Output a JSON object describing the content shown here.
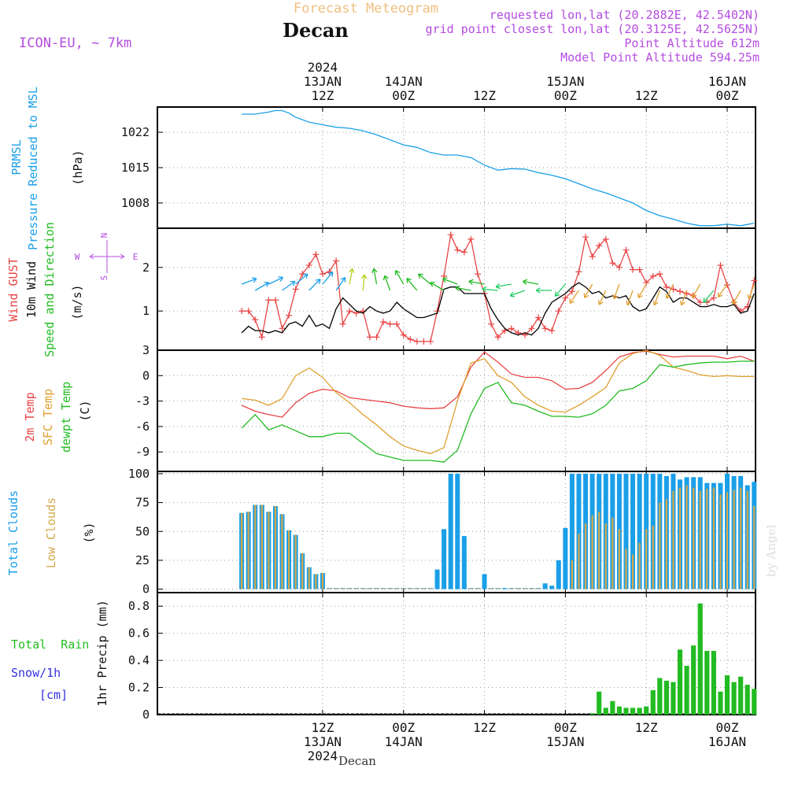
{
  "header": {
    "subtitle": "Forecast Meteogram",
    "title": "Decan",
    "model": "ICON-EU, ~ 7km",
    "requested": "requested lon,lat (20.2882E, 42.5402N)",
    "grid": "grid point closest lon,lat (20.3125E, 42.5625N)",
    "point_alt": "Point Altitude 612m",
    "model_alt": "Model Point Altitude 594.25m",
    "watermark": "by Angel",
    "footer_place": "Decan"
  },
  "colors": {
    "pressure": "#1a9fe8",
    "gust": "#e84545",
    "wind": "#000000",
    "dir": "#22bb22",
    "temp2m": "#e84545",
    "sfc": "#e0a030",
    "dewpt": "#22bb22",
    "total_clouds": "#1a9fe8",
    "low_clouds": "#d4a84b",
    "rain": "#22bb22",
    "snow": "#3333dd",
    "label_purple": "#b44ce0",
    "title_orange": "#f0c080"
  },
  "time_axis": {
    "top_labels": [
      {
        "lines": [
          "2024",
          "13JAN",
          "12Z"
        ],
        "hour": 12
      },
      {
        "lines": [
          "14JAN",
          "00Z"
        ],
        "hour": 24
      },
      {
        "lines": [
          "12Z"
        ],
        "hour": 36
      },
      {
        "lines": [
          "15JAN",
          "00Z"
        ],
        "hour": 48
      },
      {
        "lines": [
          "12Z"
        ],
        "hour": 60
      },
      {
        "lines": [
          "16JAN",
          "00Z"
        ],
        "hour": 72
      }
    ],
    "bottom_labels": [
      {
        "lines": [
          "12Z",
          "13JAN",
          "2024"
        ],
        "hour": 12
      },
      {
        "lines": [
          "00Z",
          "14JAN"
        ],
        "hour": 24
      },
      {
        "lines": [
          "12Z"
        ],
        "hour": 36
      },
      {
        "lines": [
          "00Z",
          "15JAN"
        ],
        "hour": 48
      },
      {
        "lines": [
          "12Z"
        ],
        "hour": 60
      },
      {
        "lines": [
          "00Z",
          "16JAN"
        ],
        "hour": 72
      }
    ]
  },
  "panel_labels": {
    "pressure": [
      "PRMSL",
      "Pressure Reduced to MSL"
    ],
    "pressure_unit": "(hPa)",
    "wind_gust": "Wind GUST",
    "wind_10m": "10m Wind",
    "wind_dir": "Speed and Direction",
    "wind_unit": "(m/s)",
    "compass_n": "N",
    "compass_s": "S",
    "compass_w": "W",
    "compass_e": "E",
    "temp2m": "2m Temp",
    "sfc": "SFC Temp",
    "dewpt": "dewpt Temp",
    "temp_unit": "(C)",
    "total_clouds": "Total Clouds",
    "low_clouds": "Low Clouds",
    "cloud_unit": "(%)",
    "total_rain": "Total  Rain",
    "snow": "Snow/1h",
    "snow_unit": "[cm]",
    "precip_unit": "1hr Precip (mm)"
  },
  "chart_data": [
    {
      "type": "line",
      "title": "PRMSL Pressure Reduced to MSL",
      "ylabel": "(hPa)",
      "y_ticks": [
        1008,
        1015,
        1022
      ],
      "ylim": [
        1003,
        1027
      ],
      "x_hours": [
        0,
        2,
        4,
        5,
        6,
        7,
        8,
        10,
        12,
        14,
        16,
        18,
        20,
        22,
        24,
        26,
        28,
        30,
        32,
        34,
        36,
        38,
        40,
        42,
        44,
        46,
        48,
        50,
        52,
        54,
        56,
        58,
        60,
        62,
        64,
        66,
        68,
        70,
        72,
        74,
        76
      ],
      "series": [
        {
          "name": "PRMSL",
          "values": [
            1025.6,
            1025.6,
            1026.0,
            1026.3,
            1026.3,
            1025.8,
            1025.0,
            1024.0,
            1023.5,
            1023.0,
            1022.8,
            1022.3,
            1021.5,
            1020.5,
            1019.5,
            1019.0,
            1018.0,
            1017.5,
            1017.5,
            1017.0,
            1015.5,
            1014.5,
            1014.8,
            1014.7,
            1014.0,
            1013.5,
            1012.8,
            1011.8,
            1010.8,
            1010.0,
            1009.0,
            1008.0,
            1006.5,
            1005.5,
            1004.8,
            1004.0,
            1003.5,
            1003.5,
            1003.8,
            1003.5,
            1004.0
          ]
        }
      ]
    },
    {
      "type": "line",
      "title": "Wind GUST / 10m Wind Speed and Direction",
      "ylabel": "(m/s)",
      "y_ticks": [
        1,
        2
      ],
      "ylim": [
        0.1,
        2.9
      ],
      "x_hours": [
        0,
        1,
        2,
        3,
        4,
        5,
        6,
        7,
        8,
        9,
        10,
        11,
        12,
        13,
        14,
        15,
        16,
        17,
        18,
        19,
        20,
        21,
        22,
        23,
        24,
        25,
        26,
        27,
        28,
        29,
        30,
        31,
        32,
        33,
        34,
        35,
        36,
        37,
        38,
        39,
        40,
        41,
        42,
        43,
        44,
        45,
        46,
        47,
        48,
        49,
        50,
        51,
        52,
        53,
        54,
        55,
        56,
        57,
        58,
        59,
        60,
        61,
        62,
        63,
        64,
        65,
        66,
        67,
        68,
        69,
        70,
        71,
        72,
        73,
        74,
        75,
        76
      ],
      "series": [
        {
          "name": "Wind GUST",
          "values": [
            1.0,
            1.0,
            0.8,
            0.4,
            1.25,
            1.25,
            0.6,
            0.9,
            1.5,
            1.85,
            2.05,
            2.3,
            1.85,
            1.9,
            2.15,
            0.7,
            1.0,
            0.95,
            1.0,
            0.4,
            0.4,
            0.75,
            0.7,
            0.7,
            0.45,
            0.35,
            0.3,
            0.3,
            0.3,
            1.0,
            1.8,
            2.75,
            2.4,
            2.35,
            2.65,
            1.85,
            1.4,
            0.7,
            0.4,
            0.55,
            0.6,
            0.5,
            0.45,
            0.6,
            0.85,
            0.6,
            0.55,
            1.0,
            1.3,
            1.45,
            1.9,
            2.7,
            2.25,
            2.5,
            2.65,
            2.1,
            2.0,
            2.4,
            1.95,
            1.95,
            1.65,
            1.8,
            1.85,
            1.55,
            1.5,
            1.45,
            1.4,
            1.35,
            1.2,
            1.2,
            1.3,
            2.05,
            1.6,
            1.2,
            1.0,
            1.1,
            1.7
          ]
        },
        {
          "name": "10m Wind",
          "values": [
            0.5,
            0.65,
            0.55,
            0.55,
            0.5,
            0.55,
            0.5,
            0.7,
            0.75,
            0.65,
            0.9,
            0.65,
            0.7,
            0.6,
            1.05,
            1.3,
            1.15,
            1.0,
            0.95,
            1.1,
            1.0,
            0.95,
            1.0,
            1.2,
            1.05,
            0.95,
            0.85,
            0.85,
            0.9,
            0.95,
            1.5,
            1.55,
            1.55,
            1.4,
            1.4,
            1.4,
            1.4,
            1.05,
            0.8,
            0.6,
            0.5,
            0.45,
            0.5,
            0.45,
            0.6,
            0.95,
            1.2,
            1.3,
            1.4,
            1.55,
            1.65,
            1.55,
            1.4,
            1.45,
            1.3,
            1.35,
            1.3,
            1.35,
            1.1,
            1.0,
            1.05,
            1.3,
            1.55,
            1.45,
            1.2,
            1.3,
            1.3,
            1.2,
            1.1,
            1.1,
            1.15,
            1.1,
            1.1,
            1.15,
            0.95,
            1.0,
            1.4
          ]
        }
      ],
      "direction_arrows_hours": [
        0,
        2,
        4,
        6,
        8,
        10,
        12,
        14,
        16,
        18,
        20,
        22,
        24,
        26,
        28,
        30,
        32,
        34,
        36,
        38,
        40,
        42,
        44,
        46,
        48,
        50,
        52,
        54,
        56,
        58,
        60,
        62,
        64,
        66,
        68,
        70,
        72,
        74,
        76
      ],
      "direction_arrows_deg": [
        70,
        60,
        65,
        55,
        50,
        45,
        40,
        35,
        10,
        5,
        350,
        340,
        330,
        320,
        310,
        300,
        290,
        280,
        280,
        275,
        260,
        250,
        280,
        270,
        220,
        215,
        210,
        205,
        200,
        200,
        210,
        200,
        205,
        200,
        210,
        220,
        215,
        210,
        200
      ]
    },
    {
      "type": "line",
      "title": "2m Temp / SFC Temp / dewpt Temp",
      "ylabel": "(C)",
      "y_ticks": [
        -9,
        -6,
        -3,
        0,
        3
      ],
      "ylim": [
        -11.3,
        3
      ],
      "x_hours": [
        0,
        2,
        4,
        6,
        8,
        10,
        12,
        14,
        16,
        18,
        20,
        22,
        24,
        26,
        28,
        30,
        32,
        34,
        36,
        38,
        40,
        42,
        44,
        46,
        48,
        50,
        52,
        54,
        56,
        58,
        60,
        62,
        64,
        66,
        68,
        70,
        72,
        74,
        76
      ],
      "series": [
        {
          "name": "2m Temp",
          "values": [
            -3.5,
            -4.2,
            -4.6,
            -4.9,
            -3.2,
            -2.1,
            -1.6,
            -1.8,
            -2.6,
            -2.8,
            -3.0,
            -3.2,
            -3.6,
            -3.8,
            -3.9,
            -3.8,
            -2.5,
            1.0,
            2.8,
            1.6,
            0.2,
            -0.2,
            -0.2,
            -0.6,
            -1.6,
            -1.5,
            -0.8,
            0.6,
            2.2,
            2.7,
            2.9,
            2.5,
            2.2,
            2.3,
            2.3,
            2.3,
            2.0,
            2.3,
            1.7
          ]
        },
        {
          "name": "SFC Temp",
          "values": [
            -2.7,
            -2.9,
            -3.5,
            -2.7,
            0.0,
            0.9,
            -0.2,
            -2.0,
            -3.2,
            -4.6,
            -5.8,
            -7.2,
            -8.3,
            -8.8,
            -9.2,
            -8.5,
            -3.0,
            1.5,
            2.0,
            0.0,
            -0.8,
            -2.5,
            -3.5,
            -4.2,
            -4.3,
            -3.5,
            -2.5,
            -1.4,
            1.5,
            2.6,
            3.0,
            2.4,
            1.0,
            0.6,
            0.1,
            -0.1,
            0.0,
            -0.1,
            -0.1
          ]
        },
        {
          "name": "dewpt Temp",
          "values": [
            -6.2,
            -4.6,
            -6.4,
            -5.8,
            -6.5,
            -7.2,
            -7.2,
            -6.8,
            -6.8,
            -8.0,
            -9.2,
            -9.6,
            -10.0,
            -10.0,
            -10.0,
            -10.2,
            -8.8,
            -4.5,
            -1.5,
            -0.8,
            -3.2,
            -3.5,
            -4.2,
            -4.8,
            -4.8,
            -4.9,
            -4.5,
            -3.5,
            -1.8,
            -1.5,
            -0.6,
            1.3,
            1.0,
            1.3,
            1.5,
            1.6,
            1.6,
            1.7,
            1.7
          ]
        }
      ]
    },
    {
      "type": "bar",
      "title": "Total Clouds / Low Clouds",
      "ylabel": "(%)",
      "y_ticks": [
        0,
        25,
        50,
        75,
        100
      ],
      "ylim": [
        -3,
        102
      ],
      "x_hours": [
        0,
        1,
        2,
        3,
        4,
        5,
        6,
        7,
        8,
        9,
        10,
        11,
        12,
        13,
        14,
        15,
        16,
        17,
        18,
        19,
        20,
        21,
        22,
        23,
        24,
        25,
        26,
        27,
        28,
        29,
        30,
        31,
        32,
        33,
        34,
        35,
        36,
        37,
        38,
        39,
        40,
        41,
        42,
        43,
        44,
        45,
        46,
        47,
        48,
        49,
        50,
        51,
        52,
        53,
        54,
        55,
        56,
        57,
        58,
        59,
        60,
        61,
        62,
        63,
        64,
        65,
        66,
        67,
        68,
        69,
        70,
        71,
        72,
        73,
        74,
        75,
        76
      ],
      "series": [
        {
          "name": "Total Clouds",
          "values": [
            66,
            67,
            73,
            73,
            67,
            72,
            65,
            51,
            47,
            31,
            19,
            13,
            14,
            0,
            0,
            0,
            0,
            0,
            0,
            0,
            0,
            0,
            0,
            0,
            0,
            0,
            0,
            0,
            0,
            17,
            52,
            100,
            100,
            46,
            0,
            0,
            13,
            0,
            0,
            1,
            0,
            0,
            0,
            0,
            0,
            5,
            3,
            25,
            53,
            100,
            100,
            100,
            100,
            100,
            100,
            100,
            100,
            100,
            100,
            100,
            100,
            100,
            100,
            98,
            100,
            95,
            97,
            97,
            97,
            92,
            92,
            92,
            100,
            98,
            98,
            90,
            93
          ]
        },
        {
          "name": "Low Clouds",
          "values": [
            66,
            67,
            73,
            73,
            67,
            72,
            65,
            51,
            47,
            31,
            19,
            13,
            14,
            0,
            0,
            0,
            0,
            0,
            0,
            0,
            0,
            0,
            0,
            0,
            0,
            0,
            0,
            0,
            0,
            0,
            0,
            0,
            0,
            0,
            0,
            0,
            0,
            0,
            0,
            0,
            0,
            0,
            0,
            0,
            0,
            0,
            0,
            0,
            0,
            25,
            48,
            57,
            64,
            67,
            57,
            62,
            52,
            35,
            30,
            40,
            52,
            55,
            75,
            78,
            85,
            88,
            90,
            88,
            85,
            87,
            88,
            82,
            84,
            86,
            88,
            85,
            72
          ]
        }
      ]
    },
    {
      "type": "bar",
      "title": "Total Rain / Snow",
      "ylabel": "1hr Precip (mm)",
      "y_ticks": [
        0,
        0.2,
        0.4,
        0.6,
        0.8
      ],
      "ylim": [
        0,
        0.9
      ],
      "x_hours": [
        52,
        53,
        54,
        55,
        56,
        57,
        58,
        59,
        60,
        61,
        62,
        63,
        64,
        65,
        66,
        67,
        68,
        69,
        70,
        71,
        72,
        73,
        74,
        75,
        76
      ],
      "series": [
        {
          "name": "Total Rain",
          "values": [
            0.01,
            0.17,
            0.05,
            0.1,
            0.06,
            0.05,
            0.05,
            0.05,
            0.06,
            0.18,
            0.27,
            0.25,
            0.24,
            0.48,
            0.36,
            0.51,
            0.82,
            0.47,
            0.47,
            0.17,
            0.29,
            0.24,
            0.28,
            0.22,
            0.19
          ]
        },
        {
          "name": "Snow/1h",
          "values": [
            0,
            0,
            0,
            0,
            0,
            0,
            0,
            0,
            0,
            0,
            0,
            0,
            0,
            0,
            0,
            0,
            0,
            0,
            0,
            0,
            0,
            0,
            0,
            0,
            0
          ]
        }
      ]
    }
  ]
}
